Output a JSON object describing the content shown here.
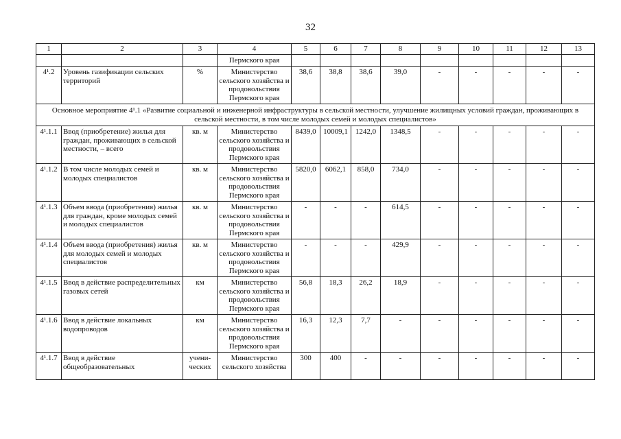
{
  "page_number": "32",
  "columns": [
    "1",
    "2",
    "3",
    "4",
    "5",
    "6",
    "7",
    "8",
    "9",
    "10",
    "11",
    "12",
    "13"
  ],
  "continuation_row": {
    "cells": [
      "",
      "",
      "",
      "Пермского края",
      "",
      "",
      "",
      "",
      "",
      "",
      "",
      "",
      ""
    ]
  },
  "row_4_1_2": {
    "cells": [
      "4¹.2",
      "Уровень газификации сельских территорий",
      "%",
      "Министерство сельского хозяйства и продовольствия Пермского края",
      "38,6",
      "38,8",
      "38,6",
      "39,0",
      "-",
      "-",
      "-",
      "-",
      "-"
    ]
  },
  "section_title": "Основное мероприятие 4¹.1 «Развитие социальной и инженерной инфраструктуры в сельской местности, улучшение жилищных условий граждан, проживающих в сельской местности, в том числе молодых семей и молодых специалистов»",
  "rows": [
    {
      "cells": [
        "4¹.1.1",
        "Ввод (приобретение) жилья для граждан, проживающих в сельской местности, – всего",
        "кв. м",
        "Министерство сельского хозяйства и продовольствия Пермского края",
        "8439,0",
        "10009,1",
        "1242,0",
        "1348,5",
        "-",
        "-",
        "-",
        "-",
        "-"
      ]
    },
    {
      "cells": [
        "4¹.1.2",
        "В том числе молодых семей и молодых специалистов",
        "кв. м",
        "Министерство сельского хозяйства и продовольствия Пермского края",
        "5820,0",
        "6062,1",
        "858,0",
        "734,0",
        "-",
        "-",
        "-",
        "-",
        "-"
      ]
    },
    {
      "cells": [
        "4¹.1.3",
        "Объем ввода (приобретения) жилья для граждан, кроме молодых семей и молодых специалистов",
        "кв. м",
        "Министерство сельского хозяйства и продовольствия Пермского края",
        "-",
        "-",
        "-",
        "614,5",
        "-",
        "-",
        "-",
        "-",
        "-"
      ]
    },
    {
      "cells": [
        "4¹.1.4",
        "Объем ввода (приобретения) жилья для молодых семей и молодых специалистов",
        "кв. м",
        "Министерство сельского хозяйства и продовольствия Пермского края",
        "-",
        "-",
        "-",
        "429,9",
        "-",
        "-",
        "-",
        "-",
        "-"
      ]
    },
    {
      "cells": [
        "4¹.1.5",
        "Ввод в действие распределительных газовых сетей",
        "км",
        "Министерство сельского хозяйства и продовольствия Пермского края",
        "56,8",
        "18,3",
        "26,2",
        "18,9",
        "-",
        "-",
        "-",
        "-",
        "-"
      ]
    },
    {
      "cells": [
        "4¹.1.6",
        "Ввод в действие локальных водопроводов",
        "км",
        "Министерство сельского хозяйства и продовольствия Пермского края",
        "16,3",
        "12,3",
        "7,7",
        "-",
        "-",
        "-",
        "-",
        "-",
        "-"
      ]
    },
    {
      "cells": [
        "4¹.1.7",
        "Ввод в действие общеобразовательных",
        "учени-ческих",
        "Министерство сельского хозяйства",
        "300",
        "400",
        "-",
        "-",
        "-",
        "-",
        "-",
        "-",
        "-"
      ]
    }
  ]
}
